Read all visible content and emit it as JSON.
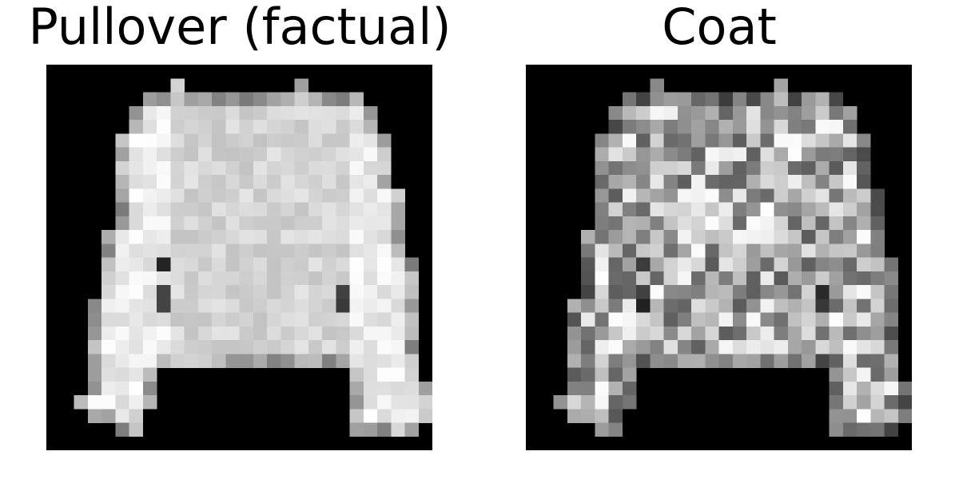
{
  "panels": [
    {
      "title": "Pullover (factual)",
      "image": "28x28 grayscale Fashion-MNIST pullover, white sweater shape on black background",
      "shading": "light"
    },
    {
      "title": "Coat",
      "image": "28x28 grayscale counterfactual coat, noisy gray texture pullover shape on black background",
      "shading": "noisy"
    }
  ],
  "colors": {
    "background": "#000000",
    "foreground": "#ffffff"
  }
}
